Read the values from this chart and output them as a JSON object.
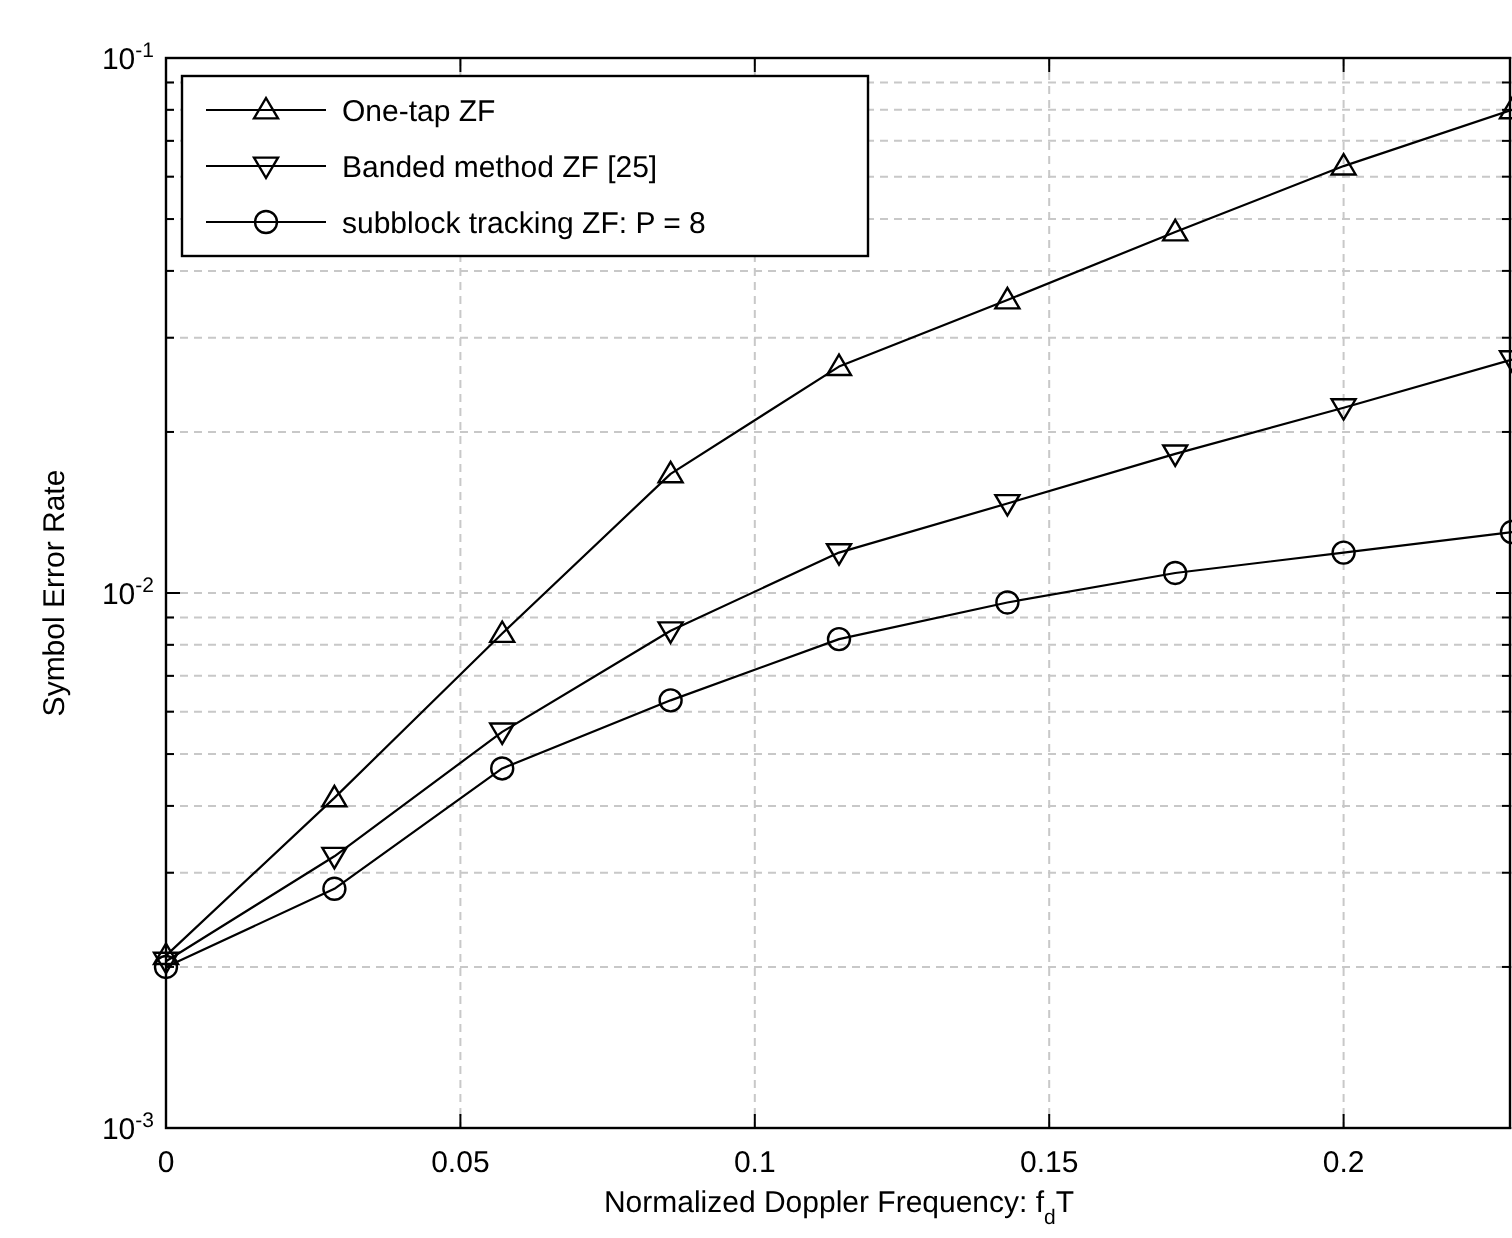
{
  "chart_data": {
    "type": "line",
    "xlabel": "Normalized Doppler Frequency: f$_{d}$T",
    "ylabel": "Symbol Error Rate",
    "x": [
      0,
      0.0286,
      0.0571,
      0.0857,
      0.1143,
      0.1429,
      0.1714,
      0.2,
      0.2286
    ],
    "series": [
      {
        "name": "One-tap ZF",
        "color": "#000000",
        "marker": "triangle",
        "values": [
          0.0021,
          0.00414,
          0.0084,
          0.0167,
          0.0265,
          0.0353,
          0.0473,
          0.0628,
          0.08
        ]
      },
      {
        "name": "Banded method ZF [25]",
        "color": "#000000",
        "marker": "triangle-down",
        "values": [
          0.00205,
          0.00322,
          0.0055,
          0.0085,
          0.0119,
          0.0147,
          0.0182,
          0.0222,
          0.0273
        ]
      },
      {
        "name": "subblock tracking ZF: P = 8",
        "color": "#000000",
        "marker": "circle",
        "values": [
          0.002,
          0.0028,
          0.0047,
          0.0063,
          0.0082,
          0.0096,
          0.0109,
          0.0119,
          0.013
        ]
      }
    ],
    "xlim": [
      0,
      0.2286
    ],
    "xticks": [
      0,
      0.05,
      0.1,
      0.15,
      0.2
    ],
    "ylim": [
      0.001,
      0.1
    ],
    "log": true,
    "yticks": [
      {
        "value": 0.001,
        "label": "10$^{-3}$"
      },
      {
        "value": 0.002,
        "label": null
      },
      {
        "value": 0.003,
        "label": null
      },
      {
        "value": 0.004,
        "label": null
      },
      {
        "value": 0.005,
        "label": null
      },
      {
        "value": 0.006,
        "label": null
      },
      {
        "value": 0.007,
        "label": null
      },
      {
        "value": 0.008,
        "label": null
      },
      {
        "value": 0.009,
        "label": null
      },
      {
        "value": 0.01,
        "label": "10$^{-2}$"
      },
      {
        "value": 0.02,
        "label": null
      },
      {
        "value": 0.03,
        "label": null
      },
      {
        "value": 0.04,
        "label": null
      },
      {
        "value": 0.05,
        "label": null
      },
      {
        "value": 0.06,
        "label": null
      },
      {
        "value": 0.07,
        "label": null
      },
      {
        "value": 0.08,
        "label": null
      },
      {
        "value": 0.09,
        "label": null
      },
      {
        "value": 0.1,
        "label": "10$^{-1}$"
      }
    ],
    "grid": true,
    "legend": "top left",
    "line_style": "solid"
  }
}
